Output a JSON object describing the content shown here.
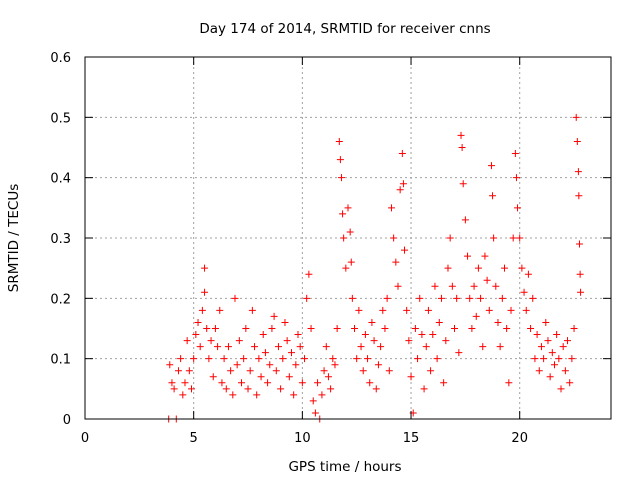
{
  "chart_data": {
    "type": "scatter",
    "title": "Day 174 of 2014, SRMTID for receiver cnns",
    "xlabel": "GPS time / hours",
    "ylabel": "SRMTID / TECUs",
    "xlim": [
      0,
      24.2
    ],
    "ylim": [
      0,
      0.6
    ],
    "xticks": [
      0,
      5,
      10,
      15,
      20
    ],
    "yticks": [
      0,
      0.1,
      0.2,
      0.3,
      0.4,
      0.5,
      0.6
    ],
    "xtick_labels": [
      "0",
      "5",
      "10",
      "15",
      "20"
    ],
    "ytick_labels": [
      "0",
      "0.1",
      "0.2",
      "0.3",
      "0.4",
      "0.5",
      "0.6"
    ],
    "grid": true,
    "marker": "+",
    "marker_color": "#ff0000",
    "series": [
      {
        "name": "SRMTID",
        "points": [
          [
            3.85,
            0.0
          ],
          [
            4.2,
            0.0
          ],
          [
            3.9,
            0.09
          ],
          [
            4.0,
            0.06
          ],
          [
            4.1,
            0.05
          ],
          [
            4.3,
            0.08
          ],
          [
            4.4,
            0.1
          ],
          [
            4.5,
            0.04
          ],
          [
            4.6,
            0.06
          ],
          [
            4.7,
            0.13
          ],
          [
            4.8,
            0.08
          ],
          [
            4.9,
            0.05
          ],
          [
            5.0,
            0.1
          ],
          [
            5.1,
            0.14
          ],
          [
            5.2,
            0.16
          ],
          [
            5.3,
            0.12
          ],
          [
            5.4,
            0.18
          ],
          [
            5.5,
            0.25
          ],
          [
            5.5,
            0.21
          ],
          [
            5.6,
            0.15
          ],
          [
            5.7,
            0.1
          ],
          [
            5.8,
            0.13
          ],
          [
            5.9,
            0.07
          ],
          [
            6.0,
            0.15
          ],
          [
            6.1,
            0.12
          ],
          [
            6.2,
            0.18
          ],
          [
            6.3,
            0.06
          ],
          [
            6.4,
            0.1
          ],
          [
            6.5,
            0.05
          ],
          [
            6.6,
            0.12
          ],
          [
            6.7,
            0.08
          ],
          [
            6.8,
            0.04
          ],
          [
            6.9,
            0.2
          ],
          [
            7.0,
            0.09
          ],
          [
            7.1,
            0.13
          ],
          [
            7.2,
            0.06
          ],
          [
            7.3,
            0.1
          ],
          [
            7.4,
            0.15
          ],
          [
            7.5,
            0.05
          ],
          [
            7.6,
            0.08
          ],
          [
            7.7,
            0.18
          ],
          [
            7.8,
            0.12
          ],
          [
            7.9,
            0.04
          ],
          [
            8.0,
            0.1
          ],
          [
            8.1,
            0.07
          ],
          [
            8.2,
            0.14
          ],
          [
            8.3,
            0.11
          ],
          [
            8.4,
            0.06
          ],
          [
            8.5,
            0.09
          ],
          [
            8.6,
            0.15
          ],
          [
            8.7,
            0.17
          ],
          [
            8.8,
            0.08
          ],
          [
            8.9,
            0.12
          ],
          [
            9.0,
            0.05
          ],
          [
            9.1,
            0.1
          ],
          [
            9.2,
            0.16
          ],
          [
            9.3,
            0.13
          ],
          [
            9.4,
            0.07
          ],
          [
            9.5,
            0.11
          ],
          [
            9.6,
            0.04
          ],
          [
            9.7,
            0.09
          ],
          [
            9.8,
            0.14
          ],
          [
            9.9,
            0.12
          ],
          [
            10.0,
            0.06
          ],
          [
            10.1,
            0.1
          ],
          [
            10.2,
            0.2
          ],
          [
            10.3,
            0.24
          ],
          [
            10.4,
            0.15
          ],
          [
            10.5,
            0.03
          ],
          [
            10.6,
            0.01
          ],
          [
            10.7,
            0.06
          ],
          [
            10.8,
            0.0
          ],
          [
            10.9,
            0.04
          ],
          [
            11.0,
            0.08
          ],
          [
            11.1,
            0.12
          ],
          [
            11.2,
            0.07
          ],
          [
            11.3,
            0.05
          ],
          [
            11.4,
            0.1
          ],
          [
            11.5,
            0.09
          ],
          [
            11.6,
            0.15
          ],
          [
            11.7,
            0.46
          ],
          [
            11.75,
            0.43
          ],
          [
            11.8,
            0.4
          ],
          [
            11.85,
            0.34
          ],
          [
            11.9,
            0.3
          ],
          [
            12.0,
            0.25
          ],
          [
            12.1,
            0.35
          ],
          [
            12.2,
            0.31
          ],
          [
            12.25,
            0.26
          ],
          [
            12.3,
            0.2
          ],
          [
            12.4,
            0.15
          ],
          [
            12.5,
            0.1
          ],
          [
            12.6,
            0.18
          ],
          [
            12.7,
            0.12
          ],
          [
            12.8,
            0.08
          ],
          [
            12.9,
            0.14
          ],
          [
            13.0,
            0.1
          ],
          [
            13.1,
            0.06
          ],
          [
            13.2,
            0.16
          ],
          [
            13.3,
            0.13
          ],
          [
            13.4,
            0.05
          ],
          [
            13.5,
            0.09
          ],
          [
            13.6,
            0.12
          ],
          [
            13.7,
            0.18
          ],
          [
            13.8,
            0.15
          ],
          [
            13.9,
            0.2
          ],
          [
            14.0,
            0.08
          ],
          [
            14.1,
            0.35
          ],
          [
            14.2,
            0.3
          ],
          [
            14.3,
            0.26
          ],
          [
            14.4,
            0.22
          ],
          [
            14.5,
            0.38
          ],
          [
            14.6,
            0.44
          ],
          [
            14.65,
            0.39
          ],
          [
            14.7,
            0.28
          ],
          [
            14.8,
            0.18
          ],
          [
            14.9,
            0.13
          ],
          [
            15.0,
            0.07
          ],
          [
            15.1,
            0.01
          ],
          [
            15.2,
            0.15
          ],
          [
            15.3,
            0.1
          ],
          [
            15.4,
            0.2
          ],
          [
            15.5,
            0.14
          ],
          [
            15.6,
            0.05
          ],
          [
            15.7,
            0.12
          ],
          [
            15.8,
            0.18
          ],
          [
            15.9,
            0.08
          ],
          [
            16.0,
            0.14
          ],
          [
            16.1,
            0.22
          ],
          [
            16.2,
            0.1
          ],
          [
            16.3,
            0.16
          ],
          [
            16.4,
            0.2
          ],
          [
            16.5,
            0.06
          ],
          [
            16.6,
            0.13
          ],
          [
            16.7,
            0.25
          ],
          [
            16.8,
            0.3
          ],
          [
            16.9,
            0.22
          ],
          [
            17.0,
            0.15
          ],
          [
            17.1,
            0.2
          ],
          [
            17.2,
            0.11
          ],
          [
            17.3,
            0.47
          ],
          [
            17.35,
            0.45
          ],
          [
            17.4,
            0.39
          ],
          [
            17.5,
            0.33
          ],
          [
            17.6,
            0.27
          ],
          [
            17.7,
            0.2
          ],
          [
            17.8,
            0.15
          ],
          [
            17.9,
            0.22
          ],
          [
            18.0,
            0.17
          ],
          [
            18.1,
            0.25
          ],
          [
            18.2,
            0.2
          ],
          [
            18.3,
            0.12
          ],
          [
            18.4,
            0.27
          ],
          [
            18.5,
            0.23
          ],
          [
            18.6,
            0.18
          ],
          [
            18.7,
            0.42
          ],
          [
            18.75,
            0.37
          ],
          [
            18.8,
            0.3
          ],
          [
            18.9,
            0.22
          ],
          [
            19.0,
            0.16
          ],
          [
            19.1,
            0.12
          ],
          [
            19.2,
            0.2
          ],
          [
            19.3,
            0.25
          ],
          [
            19.4,
            0.15
          ],
          [
            19.5,
            0.06
          ],
          [
            19.6,
            0.18
          ],
          [
            19.7,
            0.3
          ],
          [
            19.8,
            0.44
          ],
          [
            19.85,
            0.4
          ],
          [
            19.9,
            0.35
          ],
          [
            20.0,
            0.3
          ],
          [
            20.1,
            0.25
          ],
          [
            20.2,
            0.21
          ],
          [
            20.3,
            0.18
          ],
          [
            20.4,
            0.24
          ],
          [
            20.5,
            0.15
          ],
          [
            20.6,
            0.2
          ],
          [
            20.7,
            0.1
          ],
          [
            20.8,
            0.14
          ],
          [
            20.9,
            0.08
          ],
          [
            21.0,
            0.12
          ],
          [
            21.1,
            0.1
          ],
          [
            21.2,
            0.16
          ],
          [
            21.3,
            0.13
          ],
          [
            21.4,
            0.07
          ],
          [
            21.5,
            0.11
          ],
          [
            21.6,
            0.09
          ],
          [
            21.7,
            0.14
          ],
          [
            21.8,
            0.1
          ],
          [
            21.9,
            0.05
          ],
          [
            22.0,
            0.12
          ],
          [
            22.1,
            0.08
          ],
          [
            22.2,
            0.13
          ],
          [
            22.3,
            0.06
          ],
          [
            22.4,
            0.1
          ],
          [
            22.5,
            0.15
          ],
          [
            22.6,
            0.5
          ],
          [
            22.65,
            0.46
          ],
          [
            22.7,
            0.41
          ],
          [
            22.72,
            0.37
          ],
          [
            22.75,
            0.29
          ],
          [
            22.78,
            0.24
          ],
          [
            22.8,
            0.21
          ]
        ]
      }
    ]
  }
}
